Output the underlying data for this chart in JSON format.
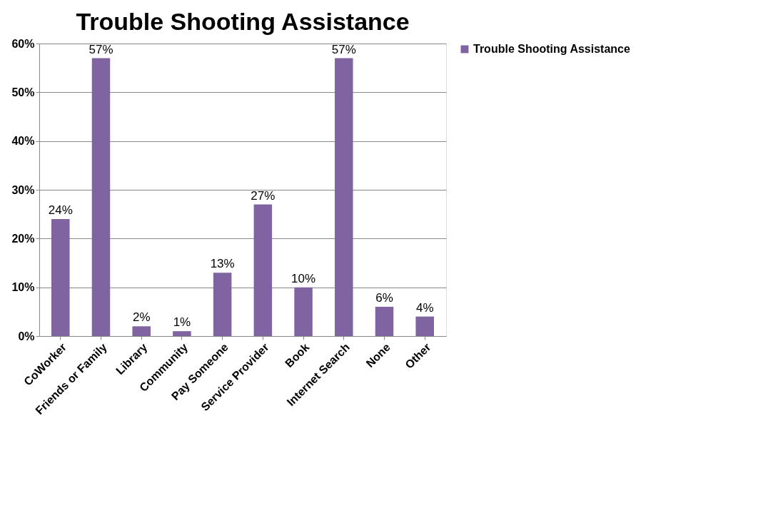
{
  "chart_data": {
    "type": "bar",
    "title": "Trouble Shooting Assistance",
    "categories": [
      "CoWorker",
      "Friends or Family",
      "Library",
      "Community",
      "Pay Someone",
      "Service Provider",
      "Book",
      "Internet Search",
      "None",
      "Other"
    ],
    "series": [
      {
        "name": "Trouble Shooting Assistance",
        "color": "#8064a2",
        "values": [
          24,
          57,
          2,
          1,
          13,
          27,
          10,
          57,
          6,
          4
        ],
        "value_labels": [
          "24%",
          "57%",
          "2%",
          "1%",
          "13%",
          "27%",
          "10%",
          "57%",
          "6%",
          "4%"
        ]
      }
    ],
    "ylim": [
      0,
      60
    ],
    "yticks": [
      {
        "value": 0,
        "label": "0%"
      },
      {
        "value": 10,
        "label": "10%"
      },
      {
        "value": 20,
        "label": "20%"
      },
      {
        "value": 30,
        "label": "30%"
      },
      {
        "value": 40,
        "label": "40%"
      },
      {
        "value": 50,
        "label": "50%"
      },
      {
        "value": 60,
        "label": "60%"
      }
    ],
    "grid": "y",
    "legend": "right"
  }
}
